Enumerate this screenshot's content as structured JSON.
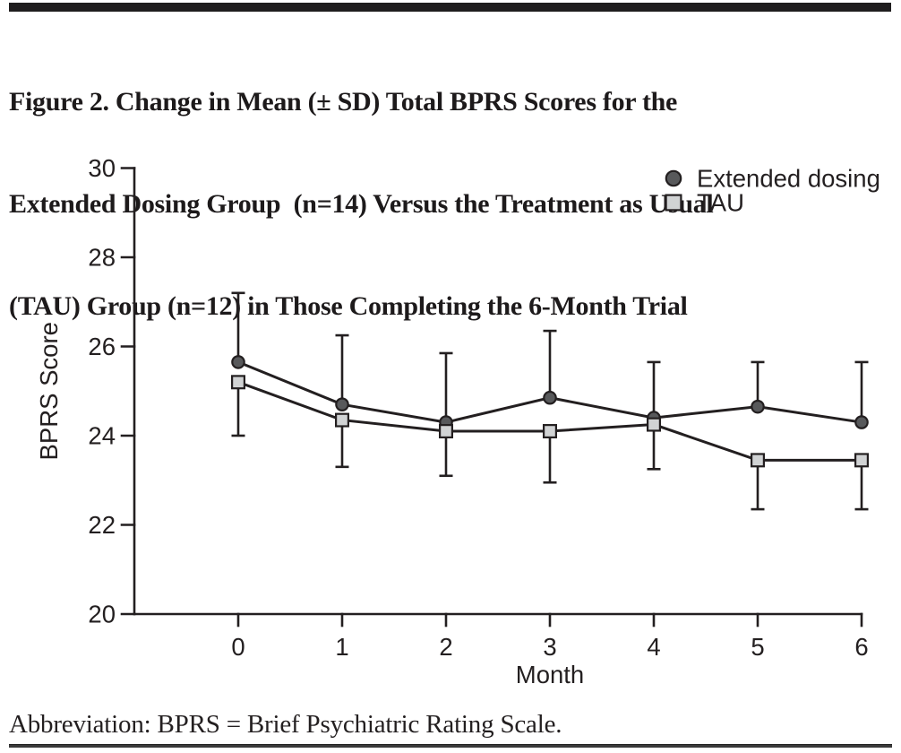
{
  "figure": {
    "title_lines": [
      "Figure 2. Change in Mean (± SD) Total BPRS Scores for the",
      "Extended Dosing Group  (n=14) Versus the Treatment as Usual",
      "(TAU) Group (n=12) in Those Completing the 6-Month Trial"
    ],
    "caption": "Abbreviation: BPRS = Brief Psychiatric Rating Scale."
  },
  "chart_data": {
    "type": "line",
    "x": [
      0,
      1,
      2,
      3,
      4,
      5,
      6
    ],
    "xlabel": "Month",
    "ylabel": "BPRS Score",
    "ylim": [
      20,
      30
    ],
    "yticks": [
      20,
      22,
      24,
      26,
      28,
      30
    ],
    "grid": false,
    "legend_position": "top-right",
    "error_bar_note": "Extended dosing shows +SD whiskers only; TAU shows -SD whiskers only",
    "series": [
      {
        "name": "Extended dosing",
        "marker": "circle",
        "marker_fill": "#58595b",
        "values": [
          25.65,
          24.7,
          24.3,
          24.85,
          24.4,
          24.65,
          24.3
        ],
        "error_up": [
          1.55,
          1.55,
          1.55,
          1.5,
          1.25,
          1.0,
          1.35
        ]
      },
      {
        "name": "TAU",
        "marker": "square",
        "marker_fill": "#d1d3d4",
        "values": [
          25.2,
          24.35,
          24.1,
          24.1,
          24.25,
          23.45,
          23.45
        ],
        "error_down": [
          1.2,
          1.05,
          1.0,
          1.15,
          1.0,
          1.1,
          1.1
        ]
      }
    ],
    "colors": {
      "ink": "#231f20"
    }
  }
}
